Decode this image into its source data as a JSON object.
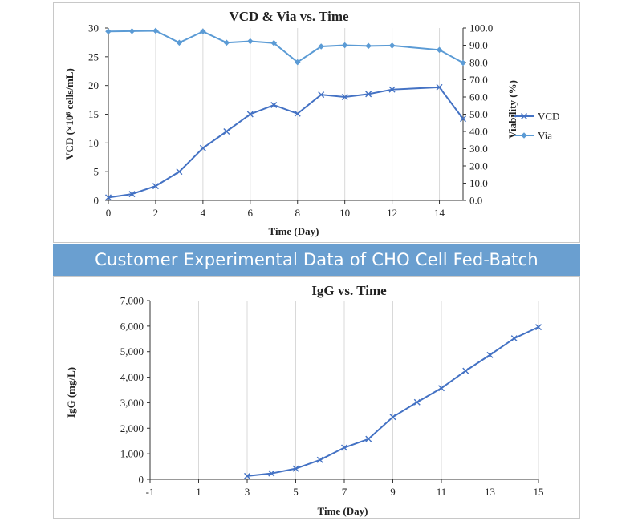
{
  "banner": {
    "text": "Customer Experimental Data of CHO Cell Fed-Batch"
  },
  "chart_data": [
    {
      "type": "line",
      "title": "VCD & Via vs. Time",
      "xlabel": "Time (Day)",
      "ylabel": "VCD (×10⁶ cells/mL)",
      "y2label": "Viability (%)",
      "xlim": [
        0,
        15
      ],
      "ylim": [
        0,
        30
      ],
      "y2lim": [
        0,
        100
      ],
      "xticks": [
        0,
        2,
        4,
        6,
        8,
        10,
        12,
        14
      ],
      "yticks": [
        0,
        5,
        10,
        15,
        20,
        25,
        30
      ],
      "y2ticks": [
        "0.0",
        "10.0",
        "20.0",
        "30.0",
        "40.0",
        "50.0",
        "60.0",
        "70.0",
        "80.0",
        "90.0",
        "100.0"
      ],
      "grid": "vertical",
      "legend": "right",
      "x": [
        0,
        1,
        2,
        3,
        4,
        5,
        6,
        7,
        8,
        9,
        10,
        11,
        12,
        14,
        15
      ],
      "series": [
        {
          "name": "VCD",
          "axis": "left",
          "marker": "x",
          "color": "#4472c4",
          "values": [
            0.5,
            1.1,
            2.5,
            5.0,
            9.1,
            12.0,
            15.0,
            16.6,
            15.1,
            18.4,
            18.0,
            18.5,
            19.3,
            19.7,
            14.2
          ]
        },
        {
          "name": "Via",
          "axis": "right",
          "marker": "diamond",
          "color": "#5b9bd5",
          "values": [
            98.0,
            98.2,
            98.4,
            91.5,
            98.0,
            91.5,
            92.3,
            91.3,
            80.2,
            89.3,
            90.0,
            89.6,
            89.8,
            87.3,
            79.8
          ]
        }
      ]
    },
    {
      "type": "line",
      "title": "IgG vs. Time",
      "xlabel": "Time (Day)",
      "ylabel": "IgG (mg/L)",
      "xlim": [
        -1,
        15
      ],
      "ylim": [
        0,
        7000
      ],
      "xticks": [
        -1,
        1,
        3,
        5,
        7,
        9,
        11,
        13,
        15
      ],
      "yticks": [
        "0",
        "1,000",
        "2,000",
        "3,000",
        "4,000",
        "5,000",
        "6,000",
        "7,000"
      ],
      "grid": "vertical",
      "x": [
        3,
        4,
        5,
        6,
        7,
        8,
        9,
        10,
        11,
        12,
        13,
        14,
        15
      ],
      "series": [
        {
          "marker": "x",
          "color": "#4472c4",
          "values": [
            130,
            230,
            420,
            760,
            1240,
            1580,
            2440,
            3020,
            3570,
            4250,
            4870,
            5520,
            5960
          ]
        }
      ]
    }
  ]
}
